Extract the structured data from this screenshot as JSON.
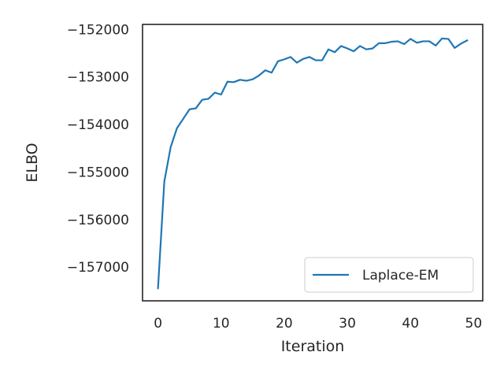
{
  "chart_data": {
    "type": "line",
    "title": "",
    "xlabel": "Iteration",
    "ylabel": "ELBO",
    "xlim": [
      -2.45,
      51.45
    ],
    "ylim": [
      -157710,
      -151895
    ],
    "xticks": [
      0,
      10,
      20,
      30,
      40,
      50
    ],
    "xtick_labels": [
      "0",
      "10",
      "20",
      "30",
      "40",
      "50"
    ],
    "yticks": [
      -157000,
      -156000,
      -155000,
      -154000,
      -153000,
      -152000
    ],
    "ytick_labels": [
      "−157000",
      "−156000",
      "−155000",
      "−154000",
      "−153000",
      "−152000"
    ],
    "grid": false,
    "legend_position": "lower-right",
    "series": [
      {
        "name": "Laplace-EM",
        "color": "#1f77b4",
        "x": [
          0,
          1,
          2,
          3,
          4,
          5,
          6,
          7,
          8,
          9,
          10,
          11,
          12,
          13,
          14,
          15,
          16,
          17,
          18,
          19,
          20,
          21,
          22,
          23,
          24,
          25,
          26,
          27,
          28,
          29,
          30,
          31,
          32,
          33,
          34,
          35,
          36,
          37,
          38,
          39,
          40,
          41,
          42,
          43,
          44,
          45,
          46,
          47,
          48,
          49
        ],
        "y": [
          -157450,
          -155200,
          -154480,
          -154080,
          -153880,
          -153680,
          -153660,
          -153480,
          -153460,
          -153330,
          -153370,
          -153100,
          -153110,
          -153060,
          -153080,
          -153050,
          -152970,
          -152860,
          -152910,
          -152670,
          -152630,
          -152580,
          -152700,
          -152620,
          -152580,
          -152650,
          -152650,
          -152420,
          -152480,
          -152350,
          -152400,
          -152460,
          -152350,
          -152420,
          -152400,
          -152290,
          -152290,
          -152260,
          -152250,
          -152310,
          -152200,
          -152280,
          -152250,
          -152250,
          -152340,
          -152190,
          -152200,
          -152390,
          -152300,
          -152230
        ]
      }
    ]
  }
}
